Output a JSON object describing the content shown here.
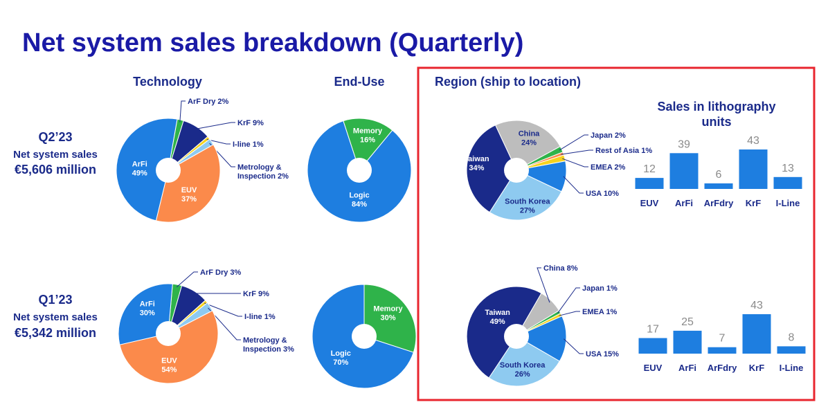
{
  "page_title": "Net system sales breakdown (Quarterly)",
  "colors": {
    "title": "#1a1aa6",
    "text": "#1a2a8a",
    "highlight_box": "#e8252e"
  },
  "quarters": [
    {
      "label": "Q2’23",
      "sub1": "Net system sales",
      "sub2": "€5,606 million"
    },
    {
      "label": "Q1’23",
      "sub1": "Net system sales",
      "sub2": "€5,342 million"
    }
  ],
  "chart_data": [
    {
      "type": "pie",
      "group": "Technology",
      "title": "Technology",
      "period": "Q2’23",
      "slices": [
        {
          "label": "ArF Dry",
          "value": 2,
          "display": "ArF Dry 2%",
          "color": "#2fb34a",
          "callout": true
        },
        {
          "label": "KrF",
          "value": 9,
          "display": "KrF 9%",
          "color": "#1a2a8a",
          "callout": true
        },
        {
          "label": "I-line",
          "value": 1,
          "display": "I-line 1%",
          "color": "#f5d21e",
          "callout": true
        },
        {
          "label": "Metrology & Inspection",
          "value": 2,
          "display": "Metrology &|Inspection 2%",
          "color": "#8ecaf0",
          "callout": true
        },
        {
          "label": "EUV",
          "value": 37,
          "display": "EUV|37%",
          "color": "#fb8a4b",
          "callout": false
        },
        {
          "label": "ArFi",
          "value": 49,
          "display": "ArFi|49%",
          "color": "#1e7ee0",
          "callout": false
        }
      ]
    },
    {
      "type": "pie",
      "group": "End-Use",
      "title": "End-Use",
      "period": "Q2’23",
      "slices": [
        {
          "label": "Memory",
          "value": 16,
          "display": "Memory|16%",
          "color": "#2fb34a",
          "callout": false
        },
        {
          "label": "Logic",
          "value": 84,
          "display": "Logic|84%",
          "color": "#1e7ee0",
          "callout": false
        }
      ]
    },
    {
      "type": "pie",
      "group": "Region",
      "title": "Region (ship to location)",
      "period": "Q2’23",
      "slices": [
        {
          "label": "China",
          "value": 24,
          "display": "China|24%",
          "color": "#bdbdbd",
          "callout": false
        },
        {
          "label": "Japan",
          "value": 2,
          "display": "Japan 2%",
          "color": "#2fb34a",
          "callout": true
        },
        {
          "label": "Rest of Asia",
          "value": 1,
          "display": "Rest of Asia 1%",
          "color": "#fb8a4b",
          "callout": true
        },
        {
          "label": "EMEA",
          "value": 2,
          "display": "EMEA 2%",
          "color": "#f5d21e",
          "callout": true
        },
        {
          "label": "USA",
          "value": 10,
          "display": "USA 10%",
          "color": "#1e7ee0",
          "callout": true
        },
        {
          "label": "South Korea",
          "value": 27,
          "display": "South Korea|27%",
          "color": "#8ecaf0",
          "callout": false
        },
        {
          "label": "Taiwan",
          "value": 34,
          "display": "Taiwan|34%",
          "color": "#1a2a8a",
          "callout": false
        }
      ]
    },
    {
      "type": "bar",
      "title": "Sales in lithography units",
      "period": "Q2’23",
      "categories": [
        "EUV",
        "ArFi",
        "ArFdry",
        "KrF",
        "I-Line"
      ],
      "values": [
        12,
        39,
        6,
        43,
        13
      ],
      "color": "#1e7ee0"
    },
    {
      "type": "pie",
      "group": "Technology",
      "period": "Q1’23",
      "slices": [
        {
          "label": "ArF Dry",
          "value": 3,
          "display": "ArF Dry 3%",
          "color": "#2fb34a",
          "callout": true
        },
        {
          "label": "KrF",
          "value": 9,
          "display": "KrF 9%",
          "color": "#1a2a8a",
          "callout": true
        },
        {
          "label": "I-line",
          "value": 1,
          "display": "I-line 1%",
          "color": "#f5d21e",
          "callout": true
        },
        {
          "label": "Metrology & Inspection",
          "value": 3,
          "display": "Metrology &|Inspection 3%",
          "color": "#8ecaf0",
          "callout": true
        },
        {
          "label": "EUV",
          "value": 54,
          "display": "EUV|54%",
          "color": "#fb8a4b",
          "callout": false
        },
        {
          "label": "ArFi",
          "value": 30,
          "display": "ArFi|30%",
          "color": "#1e7ee0",
          "callout": false
        }
      ]
    },
    {
      "type": "pie",
      "group": "End-Use",
      "period": "Q1’23",
      "slices": [
        {
          "label": "Memory",
          "value": 30,
          "display": "Memory|30%",
          "color": "#2fb34a",
          "callout": false
        },
        {
          "label": "Logic",
          "value": 70,
          "display": "Logic|70%",
          "color": "#1e7ee0",
          "callout": false
        }
      ]
    },
    {
      "type": "pie",
      "group": "Region",
      "period": "Q1’23",
      "slices": [
        {
          "label": "China",
          "value": 8,
          "display": "China 8%",
          "color": "#bdbdbd",
          "callout": true
        },
        {
          "label": "Japan",
          "value": 1,
          "display": "Japan 1%",
          "color": "#2fb34a",
          "callout": true
        },
        {
          "label": "EMEA",
          "value": 1,
          "display": "EMEA 1%",
          "color": "#f5d21e",
          "callout": true
        },
        {
          "label": "USA",
          "value": 15,
          "display": "USA 15%",
          "color": "#1e7ee0",
          "callout": true
        },
        {
          "label": "South Korea",
          "value": 26,
          "display": "South Korea|26%",
          "color": "#8ecaf0",
          "callout": false
        },
        {
          "label": "Taiwan",
          "value": 49,
          "display": "Taiwan|49%",
          "color": "#1a2a8a",
          "callout": false
        }
      ]
    },
    {
      "type": "bar",
      "period": "Q1’23",
      "categories": [
        "EUV",
        "ArFi",
        "ArFdry",
        "KrF",
        "I-Line"
      ],
      "values": [
        17,
        25,
        7,
        43,
        8
      ],
      "color": "#1e7ee0"
    }
  ]
}
